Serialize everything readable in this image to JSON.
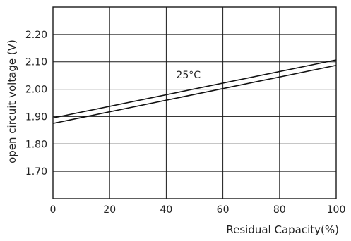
{
  "chart_data": {
    "type": "line",
    "title": "",
    "xlabel": "Residual Capacity(%)",
    "ylabel": "open circuit voltage (V)",
    "xlim": [
      0,
      100
    ],
    "ylim": [
      1.6,
      2.3
    ],
    "grid": true,
    "x_ticks": [
      0,
      20,
      40,
      60,
      80,
      100
    ],
    "x_tick_labels": [
      "0",
      "20",
      "40",
      "60",
      "80",
      "100"
    ],
    "y_ticks": [
      1.7,
      1.8,
      1.9,
      2.0,
      2.1,
      2.2
    ],
    "y_tick_labels": [
      "1.70",
      "1.80",
      "1.90",
      "2.00",
      "2.10",
      "2.20"
    ],
    "series": [
      {
        "x": [
          0,
          100
        ],
        "y": [
          1.895,
          2.107
        ],
        "color": "#111111"
      },
      {
        "x": [
          0,
          100
        ],
        "y": [
          1.875,
          2.087
        ],
        "color": "#111111"
      }
    ],
    "annotations": [
      {
        "text": "25°C",
        "x": 43.5,
        "y": 2.04
      }
    ]
  }
}
